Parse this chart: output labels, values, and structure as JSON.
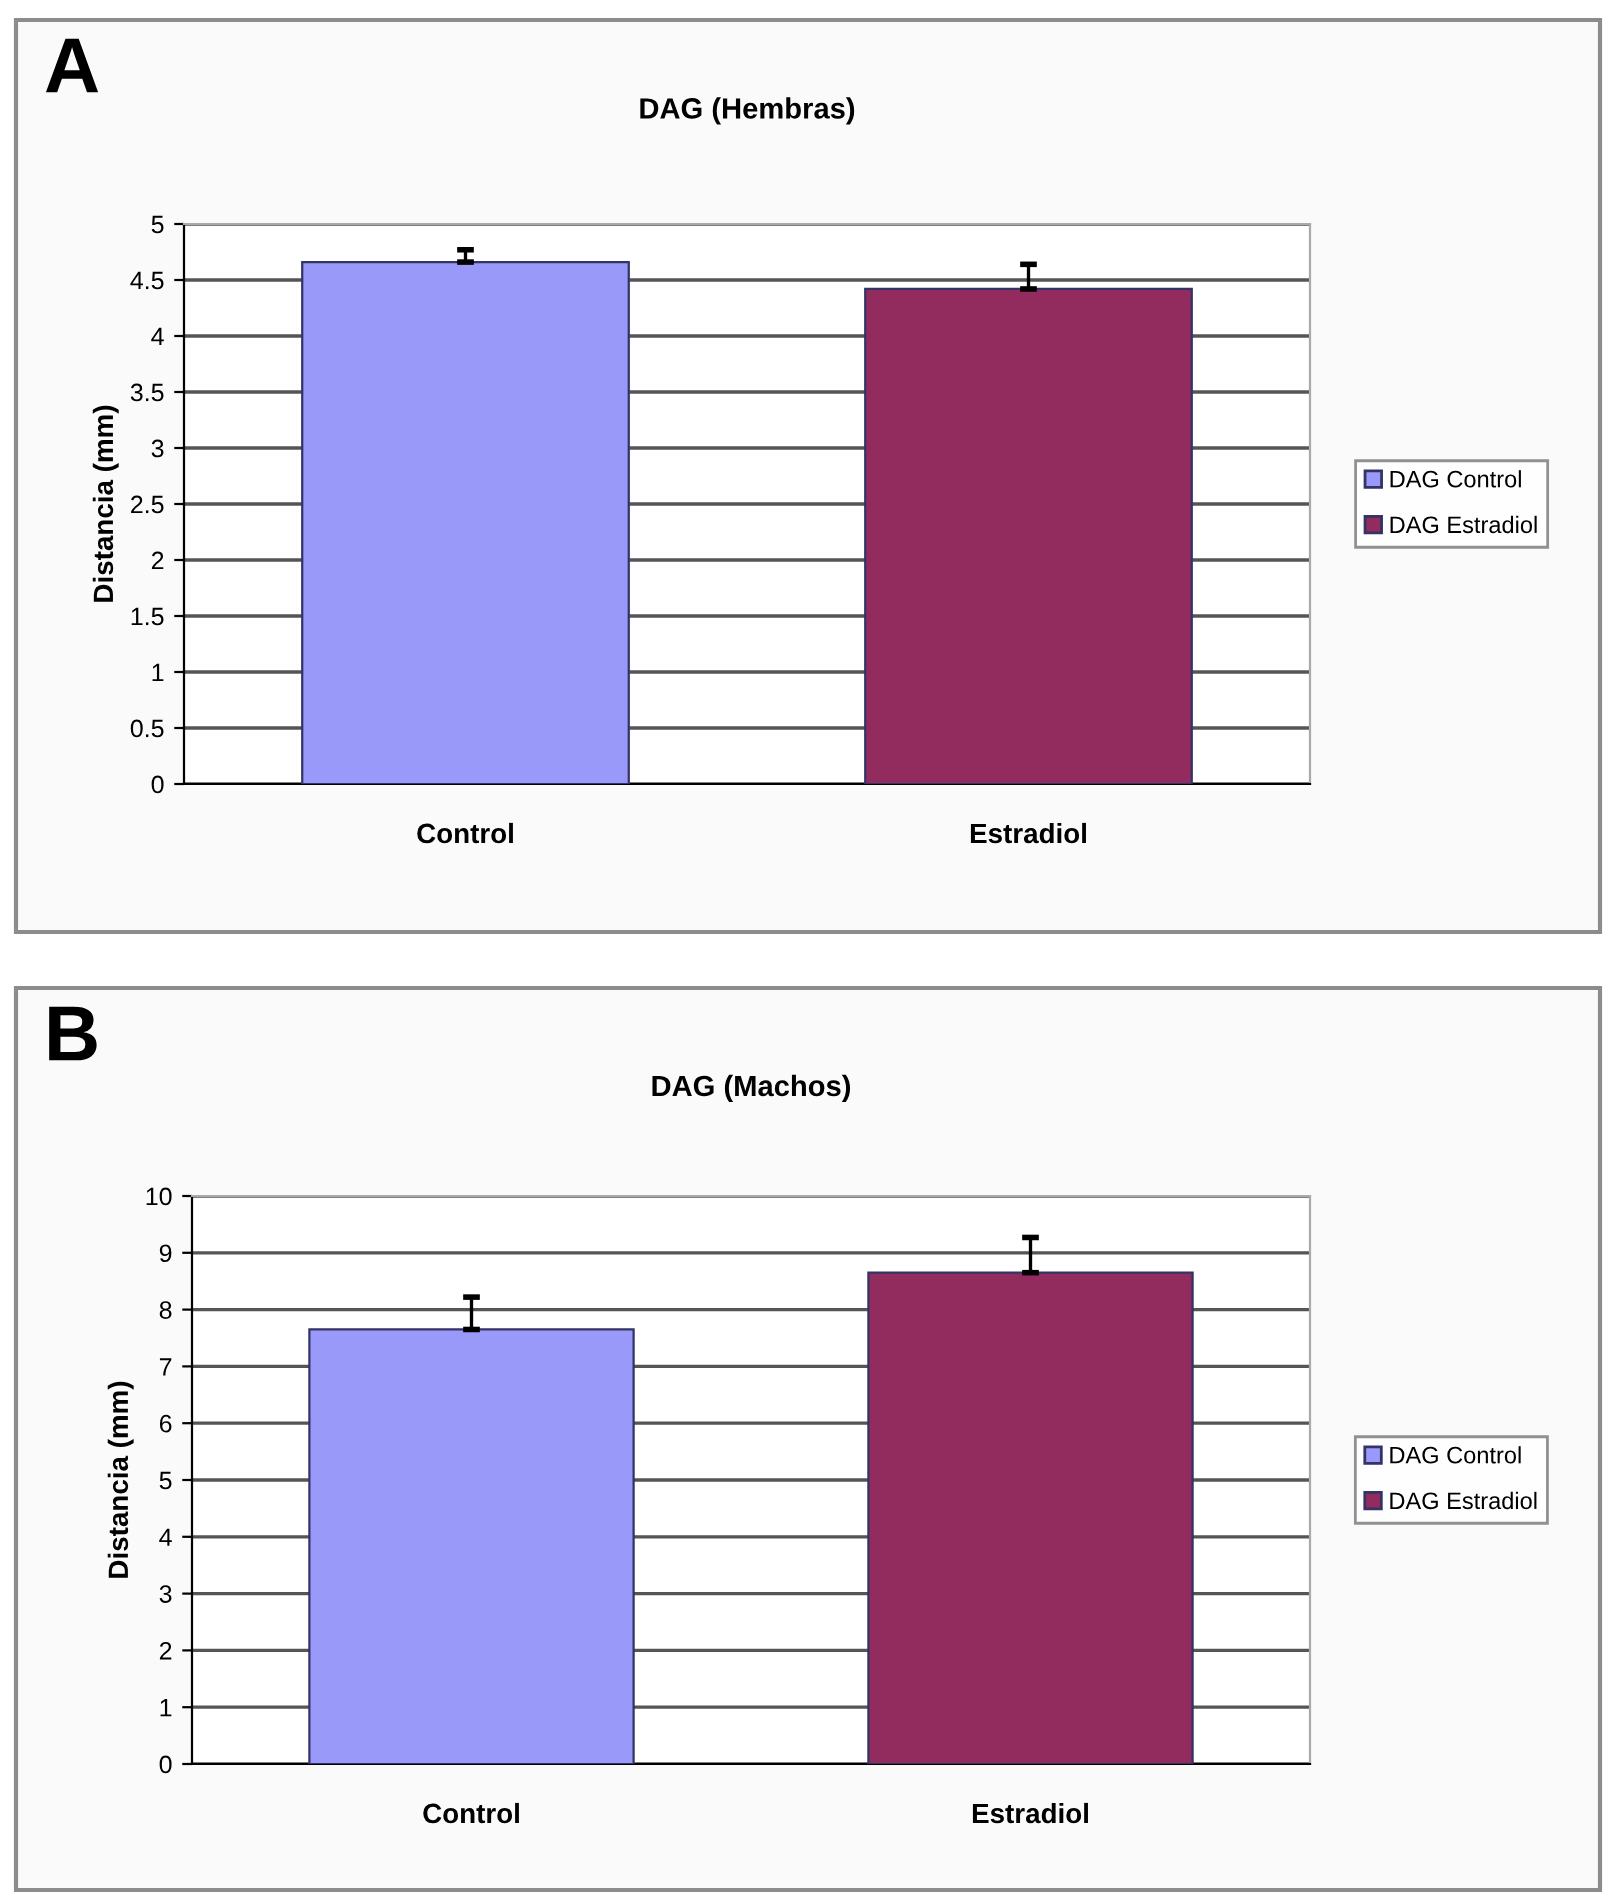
{
  "chart_data": [
    {
      "type": "bar",
      "title": "DAG (Hembras)",
      "ylabel": "Distancia (mm)",
      "annotations": [
        "A"
      ],
      "categories": [
        "Control",
        "Estradiol"
      ],
      "series": [
        {
          "name": "DAG Control",
          "color": "#9999fa",
          "values": [
            4.66,
            null
          ],
          "errors": [
            [
              4.66,
              4.77
            ],
            null
          ]
        },
        {
          "name": "DAG Estradiol",
          "color": "#932c5e",
          "values": [
            null,
            4.42
          ],
          "errors": [
            null,
            [
              4.42,
              4.64
            ]
          ]
        }
      ],
      "ylim": [
        0,
        5
      ],
      "yticks": [
        0,
        0.5,
        1,
        1.5,
        2,
        2.5,
        3,
        3.5,
        4,
        4.5,
        5
      ],
      "grid": "y",
      "legend": "right"
    },
    {
      "type": "bar",
      "title": "DAG (Machos)",
      "ylabel": "Distancia (mm)",
      "annotations": [
        "B"
      ],
      "categories": [
        "Control",
        "Estradiol"
      ],
      "series": [
        {
          "name": "DAG Control",
          "color": "#9999fa",
          "values": [
            7.65,
            null
          ],
          "errors": [
            [
              7.65,
              8.22
            ],
            null
          ]
        },
        {
          "name": "DAG Estradiol",
          "color": "#932c5e",
          "values": [
            null,
            8.65
          ],
          "errors": [
            null,
            [
              8.65,
              9.27
            ]
          ]
        }
      ],
      "ylim": [
        0,
        10
      ],
      "yticks": [
        0,
        1,
        2,
        3,
        4,
        5,
        6,
        7,
        8,
        9,
        10
      ],
      "grid": "y",
      "legend": "right"
    }
  ]
}
